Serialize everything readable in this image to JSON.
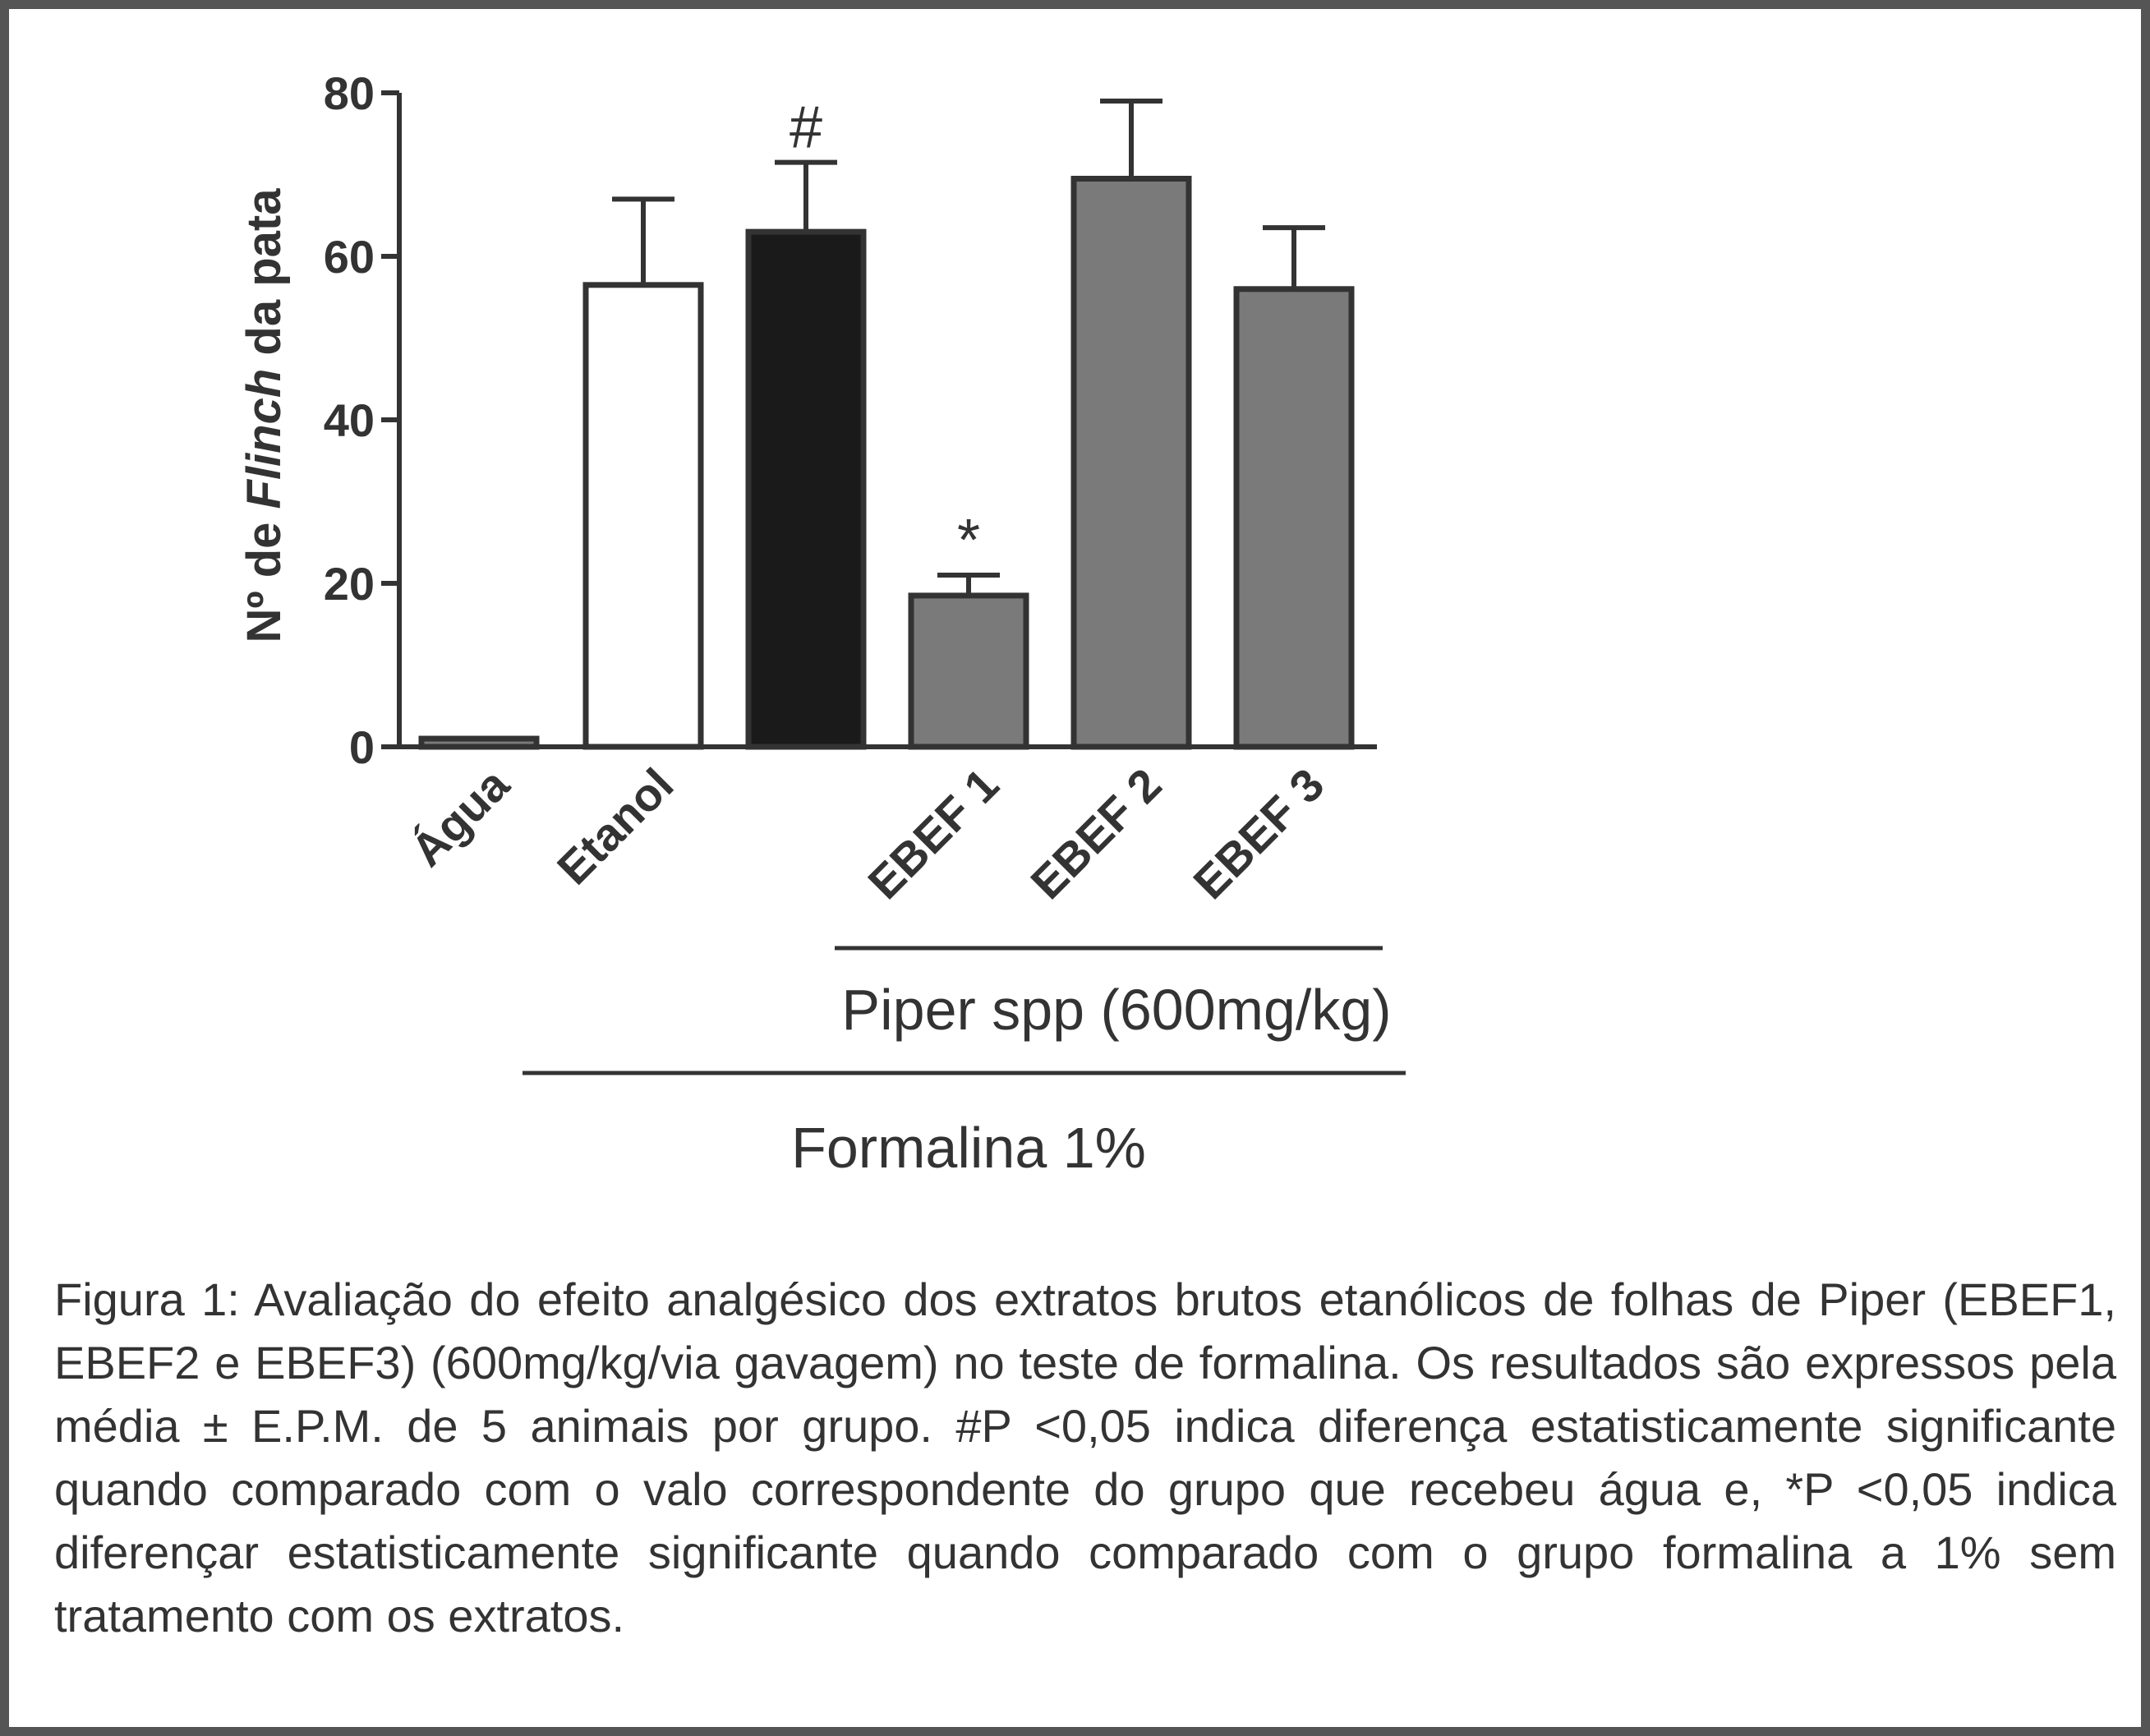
{
  "chart_data": {
    "type": "bar",
    "title": "",
    "ylabel_prefix": "Nº de ",
    "ylabel_italic": "Flinch",
    "ylabel_suffix": " da pata",
    "ylim": [
      0,
      80
    ],
    "yticks": [
      "0",
      "20",
      "40",
      "60",
      "80"
    ],
    "ytick_values": [
      0,
      20,
      40,
      60,
      80
    ],
    "grid": false,
    "categories": [
      "Água",
      "Etanol",
      "",
      "EBEF 1",
      "EBEF 2",
      "EBEF 3"
    ],
    "values": [
      1,
      56.5,
      63,
      18.5,
      69.5,
      56
    ],
    "errors": [
      0,
      10.5,
      8.5,
      2.5,
      9.5,
      7.5
    ],
    "bar_colors": [
      "#7a7a7a",
      "#ffffff",
      "#1a1a1a",
      "#7a7a7a",
      "#7a7a7a",
      "#7a7a7a"
    ],
    "bar_edge_color": "#333333",
    "annotations": [
      "",
      "",
      "#",
      "*",
      "",
      ""
    ],
    "group_labels": {
      "piper": "Piper spp (600mg/kg)",
      "formalina": "Formalina 1%"
    }
  },
  "caption": "Figura 1: Avaliação do efeito analgésico dos extratos brutos etanólicos de folhas de Piper (EBEF1, EBEF2 e EBEF3) (600mg/kg/via gavagem) no teste de formalina. Os resultados são expressos pela média ± E.P.M. de 5 animais por grupo. #P <0,05 indica diferença estatisticamente significante quando comparado com o valo correspondente do grupo que recebeu água e, *P <0,05 indica diferençar estatisticamente significante quando comparado com o grupo formalina a 1% sem tratamento com os extratos."
}
